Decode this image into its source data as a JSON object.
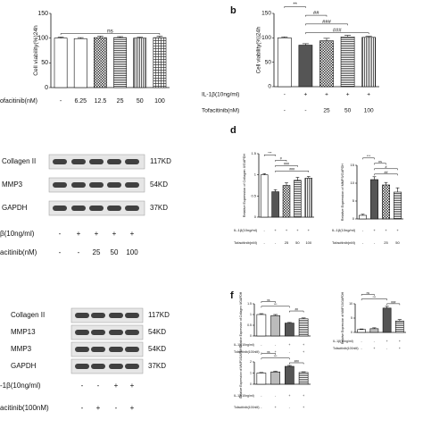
{
  "chart_data": [
    {
      "type": "bar",
      "y_label": "Cell viability(%)24h",
      "values": [
        100,
        99,
        101,
        101,
        100,
        101
      ],
      "errors": [
        2,
        2,
        3,
        2,
        2,
        3
      ],
      "bar_styles": [
        "open",
        "open",
        "checker",
        "hstripe",
        "vstripe",
        "grid"
      ],
      "ylim": [
        0,
        150
      ],
      "yticks": [
        0,
        50,
        100,
        150
      ],
      "treatments": [
        {
          "name": "ofacitinib(nM)",
          "levels": [
            "-",
            "6.25",
            "12.5",
            "25",
            "50",
            "100"
          ]
        }
      ],
      "annotations": [
        {
          "text": "ns",
          "from": 0,
          "to": 5
        }
      ]
    },
    {
      "type": "bar",
      "panel": "b",
      "y_label": "Cell viability(%)24h",
      "values": [
        100,
        85,
        94,
        102,
        101
      ],
      "errors": [
        2,
        3,
        5,
        3,
        2
      ],
      "bar_styles": [
        "open",
        "solid",
        "checker",
        "hstripe",
        "vstripe"
      ],
      "ylim": [
        0,
        150
      ],
      "yticks": [
        0,
        50,
        100,
        150
      ],
      "treatments": [
        {
          "name": "IL-1β(10ng/ml)",
          "levels": [
            "-",
            "+",
            "+",
            "+",
            "+"
          ]
        },
        {
          "name": "Tofacitinib(nM)",
          "levels": [
            "-",
            "-",
            "25",
            "50",
            "100"
          ]
        }
      ],
      "annotations": [
        {
          "text": "**",
          "from": 0,
          "to": 1
        },
        {
          "text": "##",
          "from": 1,
          "to": 2
        },
        {
          "text": "###",
          "from": 1,
          "to": 3
        },
        {
          "text": "###",
          "from": 1,
          "to": 4
        }
      ]
    },
    {
      "type": "bar",
      "panel": "d",
      "y_label": "Relative Expression of Collagen II/GAPDH",
      "values": [
        1.0,
        0.6,
        0.75,
        0.87,
        0.92
      ],
      "errors": [
        0.03,
        0.05,
        0.06,
        0.07,
        0.04
      ],
      "bar_styles": [
        "open",
        "solid",
        "checker",
        "hstripe",
        "vstripe"
      ],
      "ylim": [
        0,
        1.5
      ],
      "yticks": [
        0,
        0.5,
        1,
        1.5
      ],
      "treatments": [
        {
          "name": "IL-1β(10ng/ml)",
          "levels": [
            "-",
            "+",
            "+",
            "+",
            "+"
          ]
        },
        {
          "name": "Tofacitinib(nM)",
          "levels": [
            "-",
            "-",
            "25",
            "50",
            "100"
          ]
        }
      ],
      "annotations": [
        {
          "text": "***",
          "from": 0,
          "to": 1
        },
        {
          "text": "#",
          "from": 1,
          "to": 2
        },
        {
          "text": "###",
          "from": 1,
          "to": 3
        },
        {
          "text": "###",
          "from": 1,
          "to": 4
        }
      ]
    },
    {
      "type": "bar",
      "y_label": "Relative Expression of MMP3/GAPDH",
      "values": [
        1,
        11,
        9.5,
        7.5
      ],
      "errors": [
        0.3,
        0.8,
        0.7,
        1.2
      ],
      "bar_styles": [
        "open",
        "solid",
        "checker",
        "hstripe"
      ],
      "ylim": [
        0,
        15
      ],
      "yticks": [
        0,
        5,
        10,
        15
      ],
      "treatments": [
        {
          "name": "IL-1β(10ng/ml)",
          "levels": [
            "-",
            "+",
            "+",
            "+"
          ]
        },
        {
          "name": "Tofacitinib(nM)",
          "levels": [
            "-",
            "-",
            "25",
            "50"
          ]
        }
      ],
      "annotations": [
        {
          "text": "***",
          "from": 0,
          "to": 1
        },
        {
          "text": "ns",
          "from": 1,
          "to": 2
        },
        {
          "text": "#",
          "from": 1,
          "to": 3
        },
        {
          "text": "##",
          "from": 1,
          "to": 3
        }
      ]
    },
    {
      "type": "bar",
      "panel": "f",
      "y_label": "Relative Expression of Collagen II/GAPDH",
      "values": [
        1.0,
        0.95,
        0.6,
        0.8
      ],
      "errors": [
        0.04,
        0.05,
        0.03,
        0.04
      ],
      "bar_styles": [
        "open",
        "light",
        "solid",
        "hstripe"
      ],
      "ylim": [
        0,
        1.5
      ],
      "yticks": [
        0,
        0.5,
        1,
        1.5
      ],
      "treatments": [
        {
          "name": "IL-1β(10ng/ml)",
          "levels": [
            "-",
            "-",
            "+",
            "+"
          ]
        },
        {
          "name": "Tofacitinib(100nM)",
          "levels": [
            "-",
            "+",
            "-",
            "+"
          ]
        }
      ],
      "annotations": [
        {
          "text": "ns",
          "from": 0,
          "to": 1
        },
        {
          "text": "***",
          "from": 0,
          "to": 2
        },
        {
          "text": "##",
          "from": 2,
          "to": 3
        }
      ]
    },
    {
      "type": "bar",
      "y_label": "Relative Expression of MMP13/GAPDH",
      "values": [
        1,
        1.3,
        8.5,
        4
      ],
      "errors": [
        0.2,
        0.3,
        0.6,
        0.5
      ],
      "bar_styles": [
        "open",
        "light",
        "solid",
        "hstripe"
      ],
      "ylim": [
        0,
        10
      ],
      "yticks": [
        0,
        5,
        10
      ],
      "treatments": [
        {
          "name": "IL-1β(10ng/ml)",
          "levels": [
            "-",
            "-",
            "+",
            "+"
          ]
        },
        {
          "name": "Tofacitinib(100nM)",
          "levels": [
            "-",
            "+",
            "-",
            "+"
          ]
        }
      ],
      "annotations": [
        {
          "text": "ns",
          "from": 0,
          "to": 1
        },
        {
          "text": "***",
          "from": 0,
          "to": 2
        },
        {
          "text": "###",
          "from": 2,
          "to": 3
        }
      ]
    },
    {
      "type": "bar",
      "y_label": "Relative Expression of MMP3/GAPDH",
      "values": [
        1,
        1.1,
        1.6,
        1.05
      ],
      "errors": [
        0.05,
        0.06,
        0.08,
        0.06
      ],
      "bar_styles": [
        "open",
        "light",
        "solid",
        "hstripe"
      ],
      "ylim": [
        0,
        2
      ],
      "yticks": [
        0,
        1,
        2
      ],
      "treatments": [
        {
          "name": "IL-1β(10ng/ml)",
          "levels": [
            "-",
            "-",
            "+",
            "+"
          ]
        },
        {
          "name": "Tofacitinib(100nM)",
          "levels": [
            "-",
            "+",
            "-",
            "+"
          ]
        }
      ],
      "annotations": [
        {
          "text": "ns",
          "from": 0,
          "to": 1
        },
        {
          "text": "***",
          "from": 0,
          "to": 2
        },
        {
          "text": "###",
          "from": 2,
          "to": 3
        }
      ]
    }
  ],
  "blots": [
    {
      "bands": [
        {
          "name": "Collagen II",
          "size": "117KD"
        },
        {
          "name": "MMP3",
          "size": "54KD"
        },
        {
          "name": "GAPDH",
          "size": "37KD"
        }
      ],
      "treatments": [
        {
          "name": "β(10ng/ml)",
          "levels": [
            "-",
            "+",
            "+",
            "+",
            "+"
          ]
        },
        {
          "name": "acitinib(nM)",
          "levels": [
            "-",
            "-",
            "25",
            "50",
            "100"
          ]
        }
      ]
    },
    {
      "bands": [
        {
          "name": "Collagen II",
          "size": "117KD"
        },
        {
          "name": "MMP13",
          "size": "54KD"
        },
        {
          "name": "MMP3",
          "size": "54KD"
        },
        {
          "name": "GAPDH",
          "size": "37KD"
        }
      ],
      "treatments": [
        {
          "name": "-1β(10ng/ml)",
          "levels": [
            "-",
            "-",
            "+",
            "+"
          ]
        },
        {
          "name": "acitinib(100nM)",
          "levels": [
            "-",
            "+",
            "-",
            "+"
          ]
        }
      ]
    }
  ]
}
